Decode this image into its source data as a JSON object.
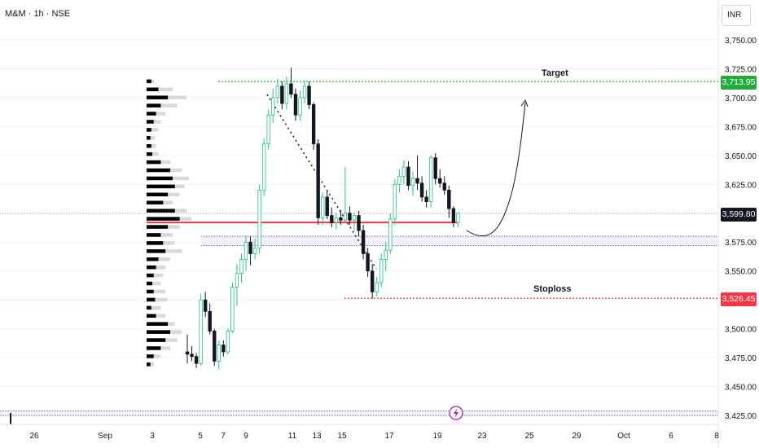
{
  "header": {
    "symbol": "M&M · 1h · NSE",
    "currency": "INR"
  },
  "colors": {
    "up": "#2ebd85",
    "down": "#131722",
    "wick_up": "#2ebd85",
    "support": "#f23645",
    "target": "#22ab39",
    "stoploss": "#f23645",
    "zone_border": "#7b6fb0",
    "zone_fill": "#ede7f6",
    "axis_text": "#131722",
    "volume_dark": "#000000",
    "volume_light": "#d9d9d9"
  },
  "annotations": {
    "target_label": "Target",
    "stoploss_label": "Stoploss",
    "target_price": "3,713.95",
    "current_price": "3,599.80",
    "stoploss_price": "3,526.45",
    "event_icon": "lightning-icon"
  },
  "chart_data": {
    "type": "candlestick",
    "y_axis": {
      "ticks": [
        "3,750.00",
        "3,725.00",
        "3,700.00",
        "3,675.00",
        "3,650.00",
        "3,625.00",
        "3,600.00",
        "3,575.00",
        "3,550.00",
        "3,525.00",
        "3,500.00",
        "3,475.00",
        "3,450.00",
        "3,425.00"
      ],
      "tick_values": [
        3750,
        3725,
        3700,
        3675,
        3650,
        3625,
        3600,
        3575,
        3550,
        3525,
        3500,
        3475,
        3450,
        3425
      ],
      "range": [
        3420,
        3762
      ]
    },
    "x_axis": {
      "ticks": [
        "26",
        "Sep",
        "3",
        "5",
        "7",
        "9",
        "11",
        "13",
        "15",
        "17",
        "19",
        "23",
        "25",
        "29",
        "Oct",
        "6",
        "8"
      ]
    },
    "levels": {
      "target": 3713.95,
      "current": 3599.8,
      "stoploss": 3526.45,
      "support": 3592
    },
    "zones": [
      {
        "low": 3572,
        "high": 3580
      },
      {
        "low": 3425,
        "high": 3429
      }
    ],
    "candles": [
      [
        3480,
        3495,
        3470,
        3478
      ],
      [
        3478,
        3485,
        3472,
        3476
      ],
      [
        3476,
        3479,
        3466,
        3470
      ],
      [
        3470,
        3530,
        3468,
        3525
      ],
      [
        3525,
        3532,
        3510,
        3515
      ],
      [
        3515,
        3522,
        3495,
        3498
      ],
      [
        3498,
        3500,
        3468,
        3472
      ],
      [
        3472,
        3490,
        3465,
        3486
      ],
      [
        3486,
        3490,
        3476,
        3480
      ],
      [
        3480,
        3500,
        3478,
        3498
      ],
      [
        3498,
        3540,
        3496,
        3536
      ],
      [
        3536,
        3556,
        3520,
        3548
      ],
      [
        3548,
        3565,
        3540,
        3560
      ],
      [
        3560,
        3580,
        3550,
        3575
      ],
      [
        3575,
        3580,
        3555,
        3565
      ],
      [
        3565,
        3578,
        3560,
        3570
      ],
      [
        3570,
        3625,
        3565,
        3620
      ],
      [
        3620,
        3665,
        3615,
        3660
      ],
      [
        3660,
        3690,
        3655,
        3685
      ],
      [
        3685,
        3708,
        3678,
        3700
      ],
      [
        3700,
        3716,
        3695,
        3710
      ],
      [
        3710,
        3714,
        3690,
        3695
      ],
      [
        3695,
        3718,
        3690,
        3712
      ],
      [
        3712,
        3726,
        3700,
        3703
      ],
      [
        3703,
        3708,
        3680,
        3685
      ],
      [
        3685,
        3706,
        3680,
        3700
      ],
      [
        3700,
        3715,
        3695,
        3710
      ],
      [
        3710,
        3714,
        3690,
        3694
      ],
      [
        3694,
        3696,
        3655,
        3660
      ],
      [
        3660,
        3664,
        3590,
        3596
      ],
      [
        3596,
        3618,
        3590,
        3614
      ],
      [
        3614,
        3620,
        3595,
        3598
      ],
      [
        3598,
        3605,
        3588,
        3592
      ],
      [
        3592,
        3600,
        3586,
        3596
      ],
      [
        3596,
        3603,
        3590,
        3594
      ],
      [
        3594,
        3640,
        3592,
        3600
      ],
      [
        3600,
        3606,
        3590,
        3594
      ],
      [
        3594,
        3600,
        3585,
        3598
      ],
      [
        3598,
        3602,
        3580,
        3585
      ],
      [
        3585,
        3590,
        3560,
        3565
      ],
      [
        3565,
        3570,
        3545,
        3550
      ],
      [
        3550,
        3556,
        3526,
        3532
      ],
      [
        3532,
        3545,
        3528,
        3540
      ],
      [
        3540,
        3565,
        3536,
        3560
      ],
      [
        3560,
        3575,
        3550,
        3568
      ],
      [
        3568,
        3600,
        3565,
        3595
      ],
      [
        3595,
        3630,
        3590,
        3625
      ],
      [
        3625,
        3638,
        3618,
        3632
      ],
      [
        3632,
        3646,
        3625,
        3640
      ],
      [
        3640,
        3645,
        3620,
        3624
      ],
      [
        3624,
        3636,
        3615,
        3630
      ],
      [
        3630,
        3650,
        3620,
        3626
      ],
      [
        3626,
        3632,
        3610,
        3614
      ],
      [
        3614,
        3620,
        3605,
        3610
      ],
      [
        3610,
        3650,
        3605,
        3648
      ],
      [
        3648,
        3652,
        3625,
        3630
      ],
      [
        3630,
        3638,
        3622,
        3626
      ],
      [
        3626,
        3632,
        3616,
        3620
      ],
      [
        3620,
        3624,
        3596,
        3604
      ],
      [
        3604,
        3606,
        3588,
        3592
      ],
      [
        3592,
        3601,
        3588,
        3600
      ]
    ],
    "volume_profile": [
      [
        3714,
        0.1,
        0.15
      ],
      [
        3707,
        0.25,
        0.55
      ],
      [
        3700,
        0.45,
        0.85
      ],
      [
        3693,
        0.3,
        0.65
      ],
      [
        3686,
        0.2,
        0.4
      ],
      [
        3679,
        0.15,
        0.3
      ],
      [
        3672,
        0.1,
        0.25
      ],
      [
        3665,
        0.08,
        0.18
      ],
      [
        3658,
        0.1,
        0.2
      ],
      [
        3651,
        0.12,
        0.25
      ],
      [
        3644,
        0.3,
        0.5
      ],
      [
        3637,
        0.5,
        0.75
      ],
      [
        3630,
        0.55,
        0.9
      ],
      [
        3623,
        0.6,
        0.8
      ],
      [
        3616,
        0.45,
        0.7
      ],
      [
        3609,
        0.35,
        0.55
      ],
      [
        3602,
        0.6,
        0.85
      ],
      [
        3595,
        0.7,
        0.95
      ],
      [
        3588,
        0.45,
        0.7
      ],
      [
        3581,
        0.3,
        0.55
      ],
      [
        3574,
        0.35,
        0.6
      ],
      [
        3567,
        0.4,
        0.75
      ],
      [
        3560,
        0.25,
        0.5
      ],
      [
        3553,
        0.2,
        0.4
      ],
      [
        3546,
        0.15,
        0.35
      ],
      [
        3539,
        0.12,
        0.3
      ],
      [
        3532,
        0.15,
        0.4
      ],
      [
        3525,
        0.18,
        0.45
      ],
      [
        3518,
        0.1,
        0.3
      ],
      [
        3511,
        0.2,
        0.4
      ],
      [
        3504,
        0.45,
        0.6
      ],
      [
        3497,
        0.5,
        0.75
      ],
      [
        3490,
        0.4,
        0.65
      ],
      [
        3483,
        0.3,
        0.5
      ],
      [
        3476,
        0.15,
        0.3
      ],
      [
        3469,
        0.08,
        0.15
      ]
    ]
  }
}
